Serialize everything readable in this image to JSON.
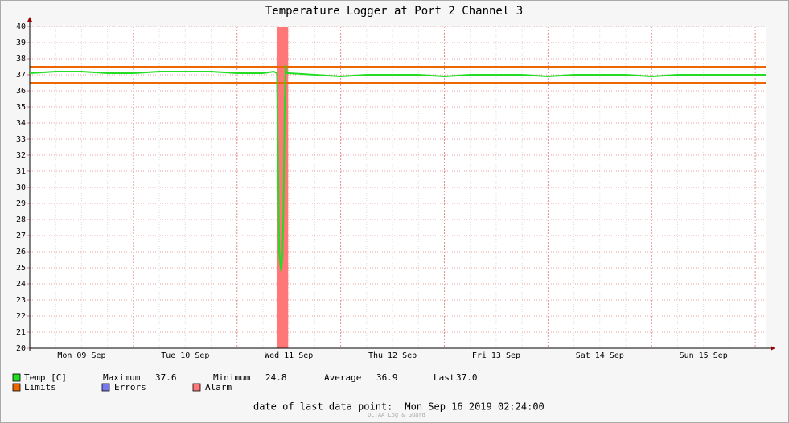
{
  "chart_data": {
    "type": "line",
    "title": "Temperature Logger at Port 2 Channel 3",
    "x": [
      "2019-09-09T00:00",
      "2019-09-09T06:00",
      "2019-09-09T12:00",
      "2019-09-09T18:00",
      "2019-09-10T00:00",
      "2019-09-10T06:00",
      "2019-09-10T12:00",
      "2019-09-10T18:00",
      "2019-09-11T00:00",
      "2019-09-11T06:00",
      "2019-09-11T08:30",
      "2019-09-11T09:15",
      "2019-09-11T09:30",
      "2019-09-11T09:45",
      "2019-09-11T10:00",
      "2019-09-11T10:15",
      "2019-09-11T10:30",
      "2019-09-11T10:45",
      "2019-09-11T11:00",
      "2019-09-11T11:15",
      "2019-09-11T11:30",
      "2019-09-11T12:00",
      "2019-09-11T18:00",
      "2019-09-12T00:00",
      "2019-09-12T06:00",
      "2019-09-12T12:00",
      "2019-09-12T18:00",
      "2019-09-13T00:00",
      "2019-09-13T06:00",
      "2019-09-13T12:00",
      "2019-09-13T18:00",
      "2019-09-14T00:00",
      "2019-09-14T06:00",
      "2019-09-14T12:00",
      "2019-09-14T18:00",
      "2019-09-15T00:00",
      "2019-09-15T06:00",
      "2019-09-15T12:00",
      "2019-09-15T18:00",
      "2019-09-16T00:00",
      "2019-09-16T02:24"
    ],
    "series": [
      {
        "name": "Temp [C]",
        "color": "#22dd22",
        "values": [
          37.1,
          37.2,
          37.2,
          37.1,
          37.1,
          37.2,
          37.2,
          37.2,
          37.1,
          37.1,
          37.2,
          37.1,
          31.2,
          26.0,
          25.2,
          24.8,
          25.8,
          28.5,
          34.5,
          37.6,
          37.1,
          37.1,
          37.0,
          36.9,
          37.0,
          37.0,
          37.0,
          36.9,
          37.0,
          37.0,
          37.0,
          36.9,
          37.0,
          37.0,
          37.0,
          36.9,
          37.0,
          37.0,
          37.0,
          37.0,
          37.0
        ]
      }
    ],
    "limits": {
      "name": "Limits",
      "color": "#ee6600",
      "values": [
        36.5,
        37.5
      ]
    },
    "errors": {
      "name": "Errors",
      "color": "#7777ee"
    },
    "alarm": {
      "name": "Alarm",
      "color": "#ff7777",
      "x": [
        "2019-09-11T09:10",
        "2019-09-11T11:50"
      ]
    },
    "stats": [
      {
        "label": "Maximum",
        "value": "37.6"
      },
      {
        "label": "Minimum",
        "value": "24.8"
      },
      {
        "label": "Average",
        "value": "36.9"
      },
      {
        "label": "Last",
        "value": "37.0"
      }
    ],
    "xlim": [
      "2019-09-09T00:00",
      "2019-09-16T02:24"
    ],
    "xticks": [
      {
        "value": "2019-09-09T12:00",
        "label": "Mon 09 Sep"
      },
      {
        "value": "2019-09-10T12:00",
        "label": "Tue 10 Sep"
      },
      {
        "value": "2019-09-11T12:00",
        "label": "Wed 11 Sep"
      },
      {
        "value": "2019-09-12T12:00",
        "label": "Thu 12 Sep"
      },
      {
        "value": "2019-09-13T12:00",
        "label": "Fri 13 Sep"
      },
      {
        "value": "2019-09-14T12:00",
        "label": "Sat 14 Sep"
      },
      {
        "value": "2019-09-15T12:00",
        "label": "Sun 15 Sep"
      }
    ],
    "ylim": [
      20,
      40
    ],
    "yticks": [
      20,
      21,
      22,
      23,
      24,
      25,
      26,
      27,
      28,
      29,
      30,
      31,
      32,
      33,
      34,
      35,
      36,
      37,
      38,
      39,
      40
    ],
    "grid": true,
    "footer": {
      "label": "date of last data point:",
      "value": "Mon Sep 16 2019 02:24:00"
    },
    "watermark": "OCTAA Log & Guard"
  }
}
